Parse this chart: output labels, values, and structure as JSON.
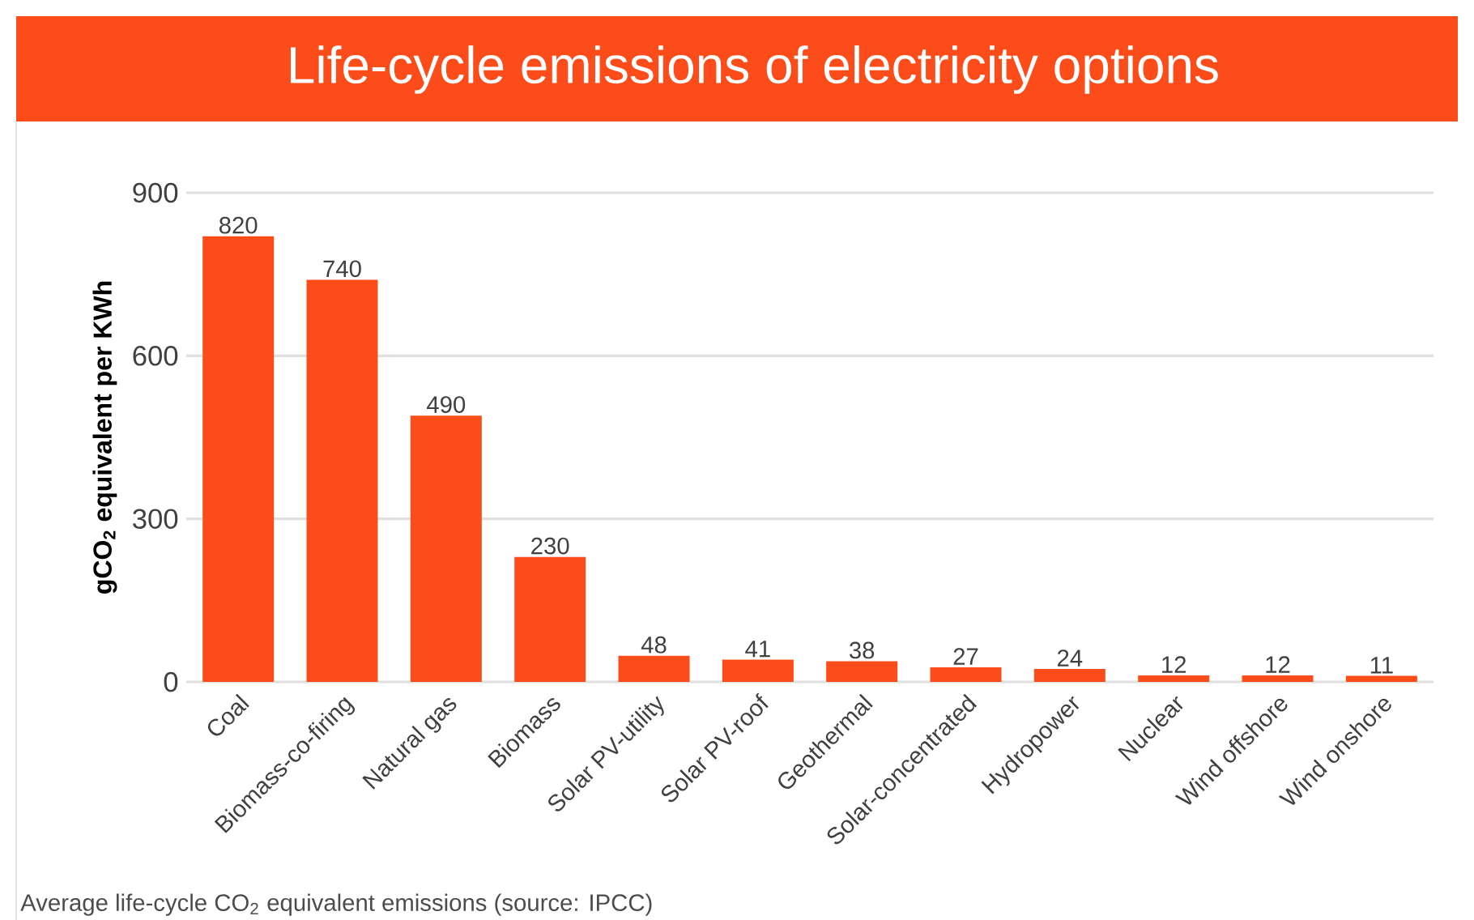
{
  "chart_data": {
    "type": "bar",
    "title": "Life-cycle emissions of electricity options",
    "ylabel": "gCO$_{2}$ equivalent per KWh",
    "categories": [
      "Coal",
      "Biomass-co-firing",
      "Natural gas",
      "Biomass",
      "Solar PV-utility",
      "Solar PV-roof",
      "Geothermal",
      "Solar-concentrated",
      "Hydropower",
      "Nuclear",
      "Wind offshore",
      "Wind onshore"
    ],
    "values": [
      820,
      740,
      490,
      230,
      48,
      41,
      38,
      27,
      24,
      12,
      12,
      11
    ],
    "color": "#fc4c1a",
    "ylim": [
      0,
      900
    ],
    "yticks": [
      0,
      300,
      600,
      900
    ],
    "grid": "y",
    "data_labels": true,
    "annotations": [
      "Average life-cycle CO$_{2}$ equivalent emissions (source: IPCC)"
    ]
  }
}
